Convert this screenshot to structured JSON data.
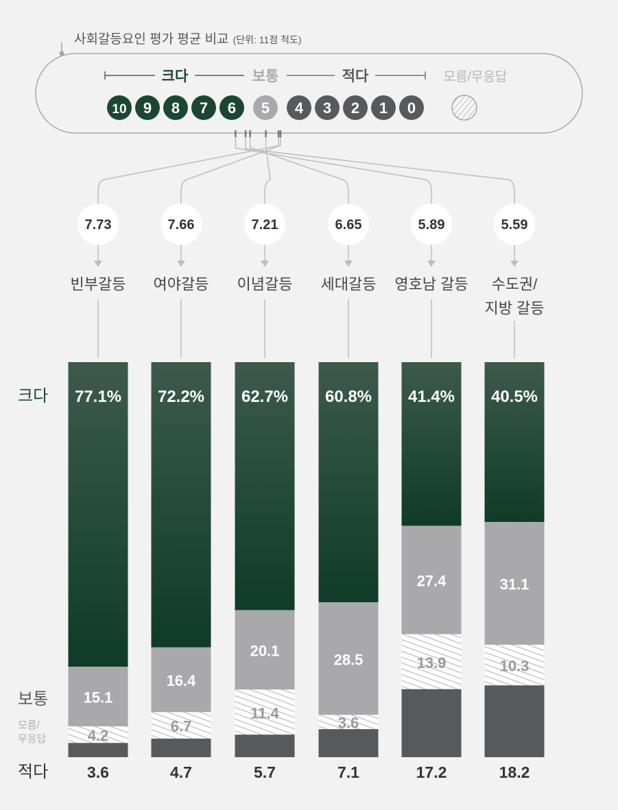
{
  "header": {
    "title": "사회갈등요인 평가 평균 비교",
    "unit": "(단위: 11점 척도)"
  },
  "scale": {
    "great_label": "크다",
    "normal_label": "보통",
    "small_label": "적다",
    "unknown_label": "모름/무응답",
    "points": [
      "10",
      "9",
      "8",
      "7",
      "6",
      "5",
      "4",
      "3",
      "2",
      "1",
      "0"
    ]
  },
  "colors": {
    "great": "#1c4634",
    "normal": "#a9a9ab",
    "small": "#58595b",
    "unknown": "#ffffff",
    "average_text": "#333333"
  },
  "row_labels": {
    "great": "크다",
    "normal": "보통",
    "unknown": [
      "모름/",
      "무응답"
    ],
    "small": "적다"
  },
  "chart_data": {
    "type": "bar",
    "stacked": true,
    "categories": [
      "빈부갈등",
      "여야갈등",
      "이념갈등",
      "세대갈등",
      "영호남 갈등",
      "수도권/ 지방 갈등"
    ],
    "category_lines": [
      [
        "빈부갈등"
      ],
      [
        "여야갈등"
      ],
      [
        "이념갈등"
      ],
      [
        "세대갈등"
      ],
      [
        "영호남 갈등"
      ],
      [
        "수도권/",
        "지방 갈등"
      ]
    ],
    "averages": [
      "7.73",
      "7.66",
      "7.21",
      "6.65",
      "5.89",
      "5.59"
    ],
    "ylim": [
      0,
      100
    ],
    "series": [
      {
        "name": "크다",
        "values": [
          77.1,
          72.2,
          62.7,
          60.8,
          41.4,
          40.5
        ],
        "labels": [
          "77.1%",
          "72.2%",
          "62.7%",
          "60.8%",
          "41.4%",
          "40.5%"
        ]
      },
      {
        "name": "보통",
        "values": [
          15.1,
          16.4,
          20.1,
          28.5,
          27.4,
          31.1
        ],
        "labels": [
          "15.1",
          "16.4",
          "20.1",
          "28.5",
          "27.4",
          "31.1"
        ]
      },
      {
        "name": "모름/무응답",
        "values": [
          4.2,
          6.7,
          11.4,
          3.6,
          13.9,
          10.3
        ],
        "labels": [
          "4.2",
          "6.7",
          "11.4",
          "3.6",
          "13.9",
          "10.3"
        ]
      },
      {
        "name": "적다",
        "values": [
          3.6,
          4.7,
          5.7,
          7.1,
          17.2,
          18.2
        ],
        "labels": [
          "3.6",
          "4.7",
          "5.7",
          "7.1",
          "17.2",
          "18.2"
        ]
      }
    ]
  }
}
